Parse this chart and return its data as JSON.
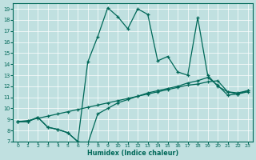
{
  "xlabel": "Humidex (Indice chaleur)",
  "bg_color": "#c0e0e0",
  "line_color": "#006858",
  "xlim": [
    -0.5,
    23.5
  ],
  "ylim": [
    7,
    19.5
  ],
  "yticks": [
    7,
    8,
    9,
    10,
    11,
    12,
    13,
    14,
    15,
    16,
    17,
    18,
    19
  ],
  "xticks": [
    0,
    1,
    2,
    3,
    4,
    5,
    6,
    7,
    8,
    9,
    10,
    11,
    12,
    13,
    14,
    15,
    16,
    17,
    18,
    19,
    20,
    21,
    22,
    23
  ],
  "curve_main_x": [
    0,
    1,
    2,
    3,
    4,
    5,
    6,
    7,
    8,
    9,
    10,
    11,
    12,
    13,
    14,
    15,
    16,
    17,
    18,
    19,
    20,
    21,
    22,
    23
  ],
  "curve_main_y": [
    8.8,
    8.8,
    9.2,
    8.3,
    8.1,
    7.8,
    7.0,
    14.2,
    16.5,
    19.1,
    18.3,
    17.2,
    19.0,
    18.5,
    14.3,
    14.7,
    13.3,
    13.0,
    18.2,
    13.0,
    12.0,
    11.5,
    11.3,
    11.5
  ],
  "curve_diag_x": [
    0,
    1,
    2,
    3,
    4,
    5,
    6,
    7,
    8,
    9,
    10,
    11,
    12,
    13,
    14,
    15,
    16,
    17,
    18,
    19,
    20,
    21,
    22,
    23
  ],
  "curve_diag_y": [
    8.8,
    8.9,
    9.1,
    9.3,
    9.5,
    9.7,
    9.9,
    10.1,
    10.3,
    10.5,
    10.7,
    10.9,
    11.1,
    11.3,
    11.5,
    11.7,
    11.9,
    12.1,
    12.2,
    12.4,
    12.5,
    11.5,
    11.4,
    11.6
  ],
  "curve_low_x": [
    0,
    1,
    2,
    3,
    4,
    5,
    6,
    7,
    8,
    9,
    10,
    11,
    12,
    13,
    14,
    15,
    16,
    17,
    18,
    19,
    20,
    21,
    22,
    23
  ],
  "curve_low_y": [
    8.8,
    8.8,
    9.2,
    8.3,
    8.1,
    7.8,
    7.0,
    6.8,
    9.5,
    10.0,
    10.5,
    10.8,
    11.1,
    11.4,
    11.6,
    11.8,
    12.0,
    12.3,
    12.5,
    12.8,
    12.1,
    11.2,
    11.3,
    11.6
  ]
}
